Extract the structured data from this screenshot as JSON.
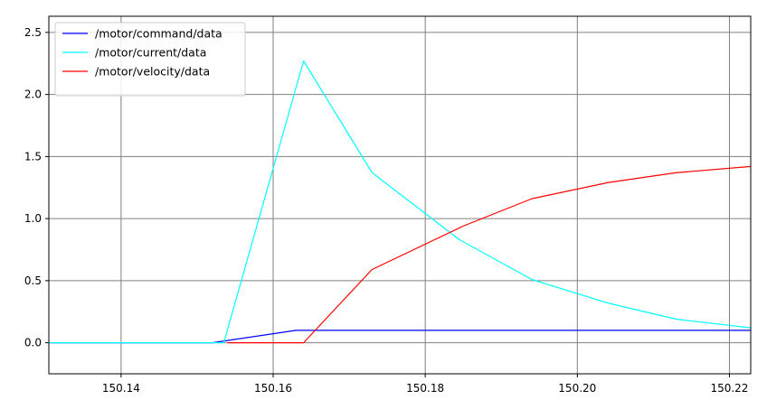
{
  "chart_data": {
    "type": "line",
    "title": "",
    "xlabel": "",
    "ylabel": "",
    "xlim": [
      150.1305,
      150.2228
    ],
    "ylim": [
      -0.25,
      2.63
    ],
    "grid": true,
    "legend_position": "top-left",
    "x_ticks": [
      {
        "value": 150.14,
        "label": "150.14"
      },
      {
        "value": 150.16,
        "label": "150.16"
      },
      {
        "value": 150.18,
        "label": "150.18"
      },
      {
        "value": 150.2,
        "label": "150.20"
      },
      {
        "value": 150.22,
        "label": "150.22"
      }
    ],
    "y_ticks": [
      {
        "value": 0.0,
        "label": "0.0"
      },
      {
        "value": 0.5,
        "label": "0.5"
      },
      {
        "value": 1.0,
        "label": "1.0"
      },
      {
        "value": 1.5,
        "label": "1.5"
      },
      {
        "value": 2.0,
        "label": "2.0"
      },
      {
        "value": 2.5,
        "label": "2.5"
      }
    ],
    "series": [
      {
        "name": "/motor/command/data",
        "color": "#0000ff",
        "x": [
          150.1305,
          150.152,
          150.163,
          150.2228
        ],
        "y": [
          0.0,
          0.0,
          0.1,
          0.1
        ]
      },
      {
        "name": "/motor/current/data",
        "color": "#00ffff",
        "x": [
          150.1305,
          150.1535,
          150.164,
          150.173,
          150.1845,
          150.194,
          150.204,
          150.213,
          150.2228
        ],
        "y": [
          0.0,
          0.0,
          2.27,
          1.37,
          0.83,
          0.51,
          0.32,
          0.19,
          0.12
        ]
      },
      {
        "name": "/motor/velocity/data",
        "color": "#ff0000",
        "x": [
          150.154,
          150.164,
          150.173,
          150.185,
          150.194,
          150.204,
          150.213,
          150.2228
        ],
        "y": [
          0.0,
          0.0,
          0.59,
          0.94,
          1.16,
          1.29,
          1.37,
          1.42
        ]
      }
    ]
  }
}
